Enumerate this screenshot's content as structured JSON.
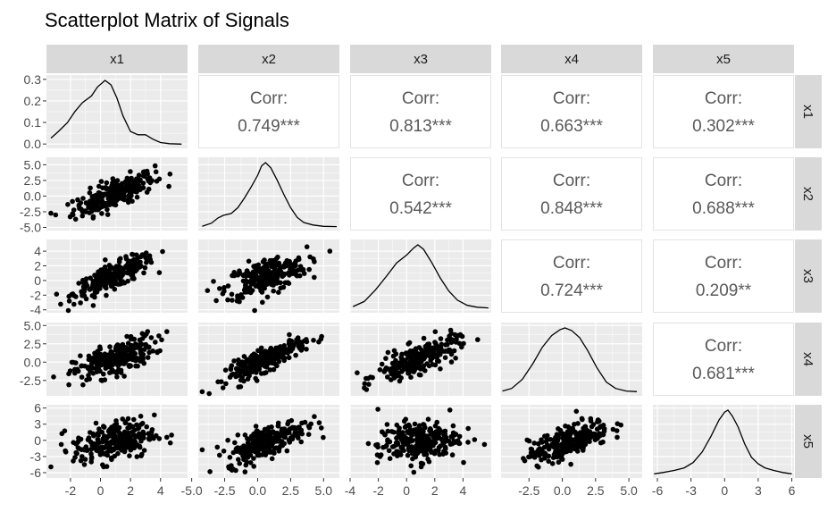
{
  "chart_data": {
    "type": "scatterplot-matrix",
    "title": "Scatterplot Matrix of Signals",
    "variables": [
      "x1",
      "x2",
      "x3",
      "x4",
      "x5"
    ],
    "correlation_label": "Corr:",
    "correlations": [
      {
        "row": "x1",
        "col": "x2",
        "value": "0.749***"
      },
      {
        "row": "x1",
        "col": "x3",
        "value": "0.813***"
      },
      {
        "row": "x1",
        "col": "x4",
        "value": "0.663***"
      },
      {
        "row": "x1",
        "col": "x5",
        "value": "0.302***"
      },
      {
        "row": "x2",
        "col": "x3",
        "value": "0.542***"
      },
      {
        "row": "x2",
        "col": "x4",
        "value": "0.848***"
      },
      {
        "row": "x2",
        "col": "x5",
        "value": "0.688***"
      },
      {
        "row": "x3",
        "col": "x4",
        "value": "0.724***"
      },
      {
        "row": "x3",
        "col": "x5",
        "value": "0.209**"
      },
      {
        "row": "x4",
        "col": "x5",
        "value": "0.681***"
      }
    ],
    "x_axis": {
      "x1": {
        "range": [
          -3.6,
          5.8
        ],
        "ticks": [
          -2,
          0,
          2,
          4
        ]
      },
      "x2": {
        "range": [
          -4.5,
          6.2
        ],
        "ticks": [
          -5.0,
          -2.5,
          0.0,
          2.5,
          5.0
        ]
      },
      "x3": {
        "range": [
          -4.0,
          6.0
        ],
        "ticks": [
          -4,
          -2,
          0,
          2,
          4
        ]
      },
      "x4": {
        "range": [
          -4.6,
          6.0
        ],
        "ticks": [
          -2.5,
          0.0,
          2.5,
          5.0
        ]
      },
      "x5": {
        "range": [
          -6.4,
          6.2
        ],
        "ticks": [
          -6,
          -3,
          0,
          3,
          6
        ]
      }
    },
    "x_tick_labels": {
      "x1": [
        "-2",
        "0",
        "2",
        "4"
      ],
      "x2": [
        "-5.0",
        "-2.5",
        "0.0",
        "2.5",
        "5.0"
      ],
      "x3": [
        "-4",
        "-2",
        "0",
        "2",
        "4"
      ],
      "x4": [
        "-2.5",
        "0.0",
        "2.5",
        "5.0"
      ],
      "x5": [
        "-6",
        "-3",
        "0",
        "3",
        "6"
      ]
    },
    "y_axis": {
      "x1": {
        "range": [
          -0.02,
          0.32
        ],
        "ticks": [
          0.0,
          0.1,
          0.2,
          0.3
        ],
        "labels": [
          "0.0",
          "0.1",
          "0.2",
          "0.3"
        ]
      },
      "x2": {
        "range": [
          -5.5,
          6.2
        ],
        "ticks": [
          -5.0,
          -2.5,
          0.0,
          2.5,
          5.0
        ],
        "labels": [
          "-5.0",
          "-2.5",
          "0.0",
          "2.5",
          "5.0"
        ]
      },
      "x3": {
        "range": [
          -4.4,
          5.6
        ],
        "ticks": [
          -4,
          -2,
          0,
          2,
          4
        ],
        "labels": [
          "-4",
          "-2",
          "0",
          "2",
          "4"
        ]
      },
      "x4": {
        "range": [
          -4.6,
          5.4
        ],
        "ticks": [
          -2.5,
          0.0,
          2.5,
          5.0
        ],
        "labels": [
          "-2.5",
          "0.0",
          "2.5",
          "5.0"
        ]
      },
      "x5": {
        "range": [
          -7.0,
          6.6
        ],
        "ticks": [
          -6,
          -3,
          0,
          3,
          6
        ],
        "labels": [
          "-6",
          "-3",
          "0",
          "3",
          "6"
        ]
      }
    },
    "density_curves": {
      "x1": [
        [
          -3.3,
          0.03
        ],
        [
          -2.8,
          0.06
        ],
        [
          -2.2,
          0.1
        ],
        [
          -1.7,
          0.15
        ],
        [
          -1.2,
          0.19
        ],
        [
          -0.6,
          0.22
        ],
        [
          -0.2,
          0.26
        ],
        [
          0.3,
          0.29
        ],
        [
          0.7,
          0.27
        ],
        [
          1.1,
          0.21
        ],
        [
          1.5,
          0.13
        ],
        [
          2.0,
          0.06
        ],
        [
          2.5,
          0.045
        ],
        [
          3.0,
          0.045
        ],
        [
          3.5,
          0.025
        ],
        [
          4.0,
          0.01
        ],
        [
          4.6,
          0.005
        ],
        [
          5.4,
          0.003
        ]
      ],
      "x2": [
        [
          -4.2,
          0.01
        ],
        [
          -3.5,
          0.06
        ],
        [
          -3.0,
          0.14
        ],
        [
          -2.6,
          0.18
        ],
        [
          -2.0,
          0.21
        ],
        [
          -1.5,
          0.3
        ],
        [
          -1.0,
          0.45
        ],
        [
          -0.5,
          0.62
        ],
        [
          0.0,
          0.8
        ],
        [
          0.3,
          0.95
        ],
        [
          0.6,
          1.0
        ],
        [
          1.0,
          0.92
        ],
        [
          1.5,
          0.72
        ],
        [
          2.0,
          0.5
        ],
        [
          2.5,
          0.3
        ],
        [
          3.0,
          0.15
        ],
        [
          3.5,
          0.07
        ],
        [
          4.2,
          0.03
        ],
        [
          5.0,
          0.01
        ],
        [
          6.0,
          0.005
        ]
      ],
      "x3": [
        [
          -3.8,
          0.04
        ],
        [
          -3.0,
          0.12
        ],
        [
          -2.2,
          0.3
        ],
        [
          -1.4,
          0.52
        ],
        [
          -0.7,
          0.72
        ],
        [
          0.0,
          0.84
        ],
        [
          0.5,
          0.95
        ],
        [
          0.8,
          1.0
        ],
        [
          1.2,
          0.93
        ],
        [
          1.8,
          0.72
        ],
        [
          2.4,
          0.48
        ],
        [
          3.0,
          0.28
        ],
        [
          3.6,
          0.14
        ],
        [
          4.3,
          0.06
        ],
        [
          5.0,
          0.03
        ],
        [
          5.8,
          0.02
        ]
      ],
      "x4": [
        [
          -4.5,
          0.02
        ],
        [
          -3.8,
          0.06
        ],
        [
          -3.0,
          0.2
        ],
        [
          -2.2,
          0.45
        ],
        [
          -1.5,
          0.7
        ],
        [
          -0.8,
          0.88
        ],
        [
          -0.2,
          0.97
        ],
        [
          0.2,
          1.0
        ],
        [
          0.7,
          0.96
        ],
        [
          1.3,
          0.85
        ],
        [
          1.9,
          0.65
        ],
        [
          2.6,
          0.38
        ],
        [
          3.3,
          0.16
        ],
        [
          4.0,
          0.06
        ],
        [
          4.8,
          0.02
        ],
        [
          5.6,
          0.01
        ]
      ],
      "x5": [
        [
          -6.3,
          0.01
        ],
        [
          -5.5,
          0.03
        ],
        [
          -4.5,
          0.06
        ],
        [
          -3.6,
          0.1
        ],
        [
          -2.8,
          0.18
        ],
        [
          -2.0,
          0.34
        ],
        [
          -1.2,
          0.58
        ],
        [
          -0.5,
          0.82
        ],
        [
          0.0,
          0.94
        ],
        [
          0.3,
          0.97
        ],
        [
          0.7,
          0.88
        ],
        [
          1.2,
          0.72
        ],
        [
          1.8,
          0.46
        ],
        [
          2.4,
          0.26
        ],
        [
          3.0,
          0.16
        ],
        [
          3.6,
          0.1
        ],
        [
          4.4,
          0.06
        ],
        [
          5.2,
          0.03
        ],
        [
          6.0,
          0.01
        ]
      ]
    },
    "grid": true,
    "points_per_panel": 250
  }
}
